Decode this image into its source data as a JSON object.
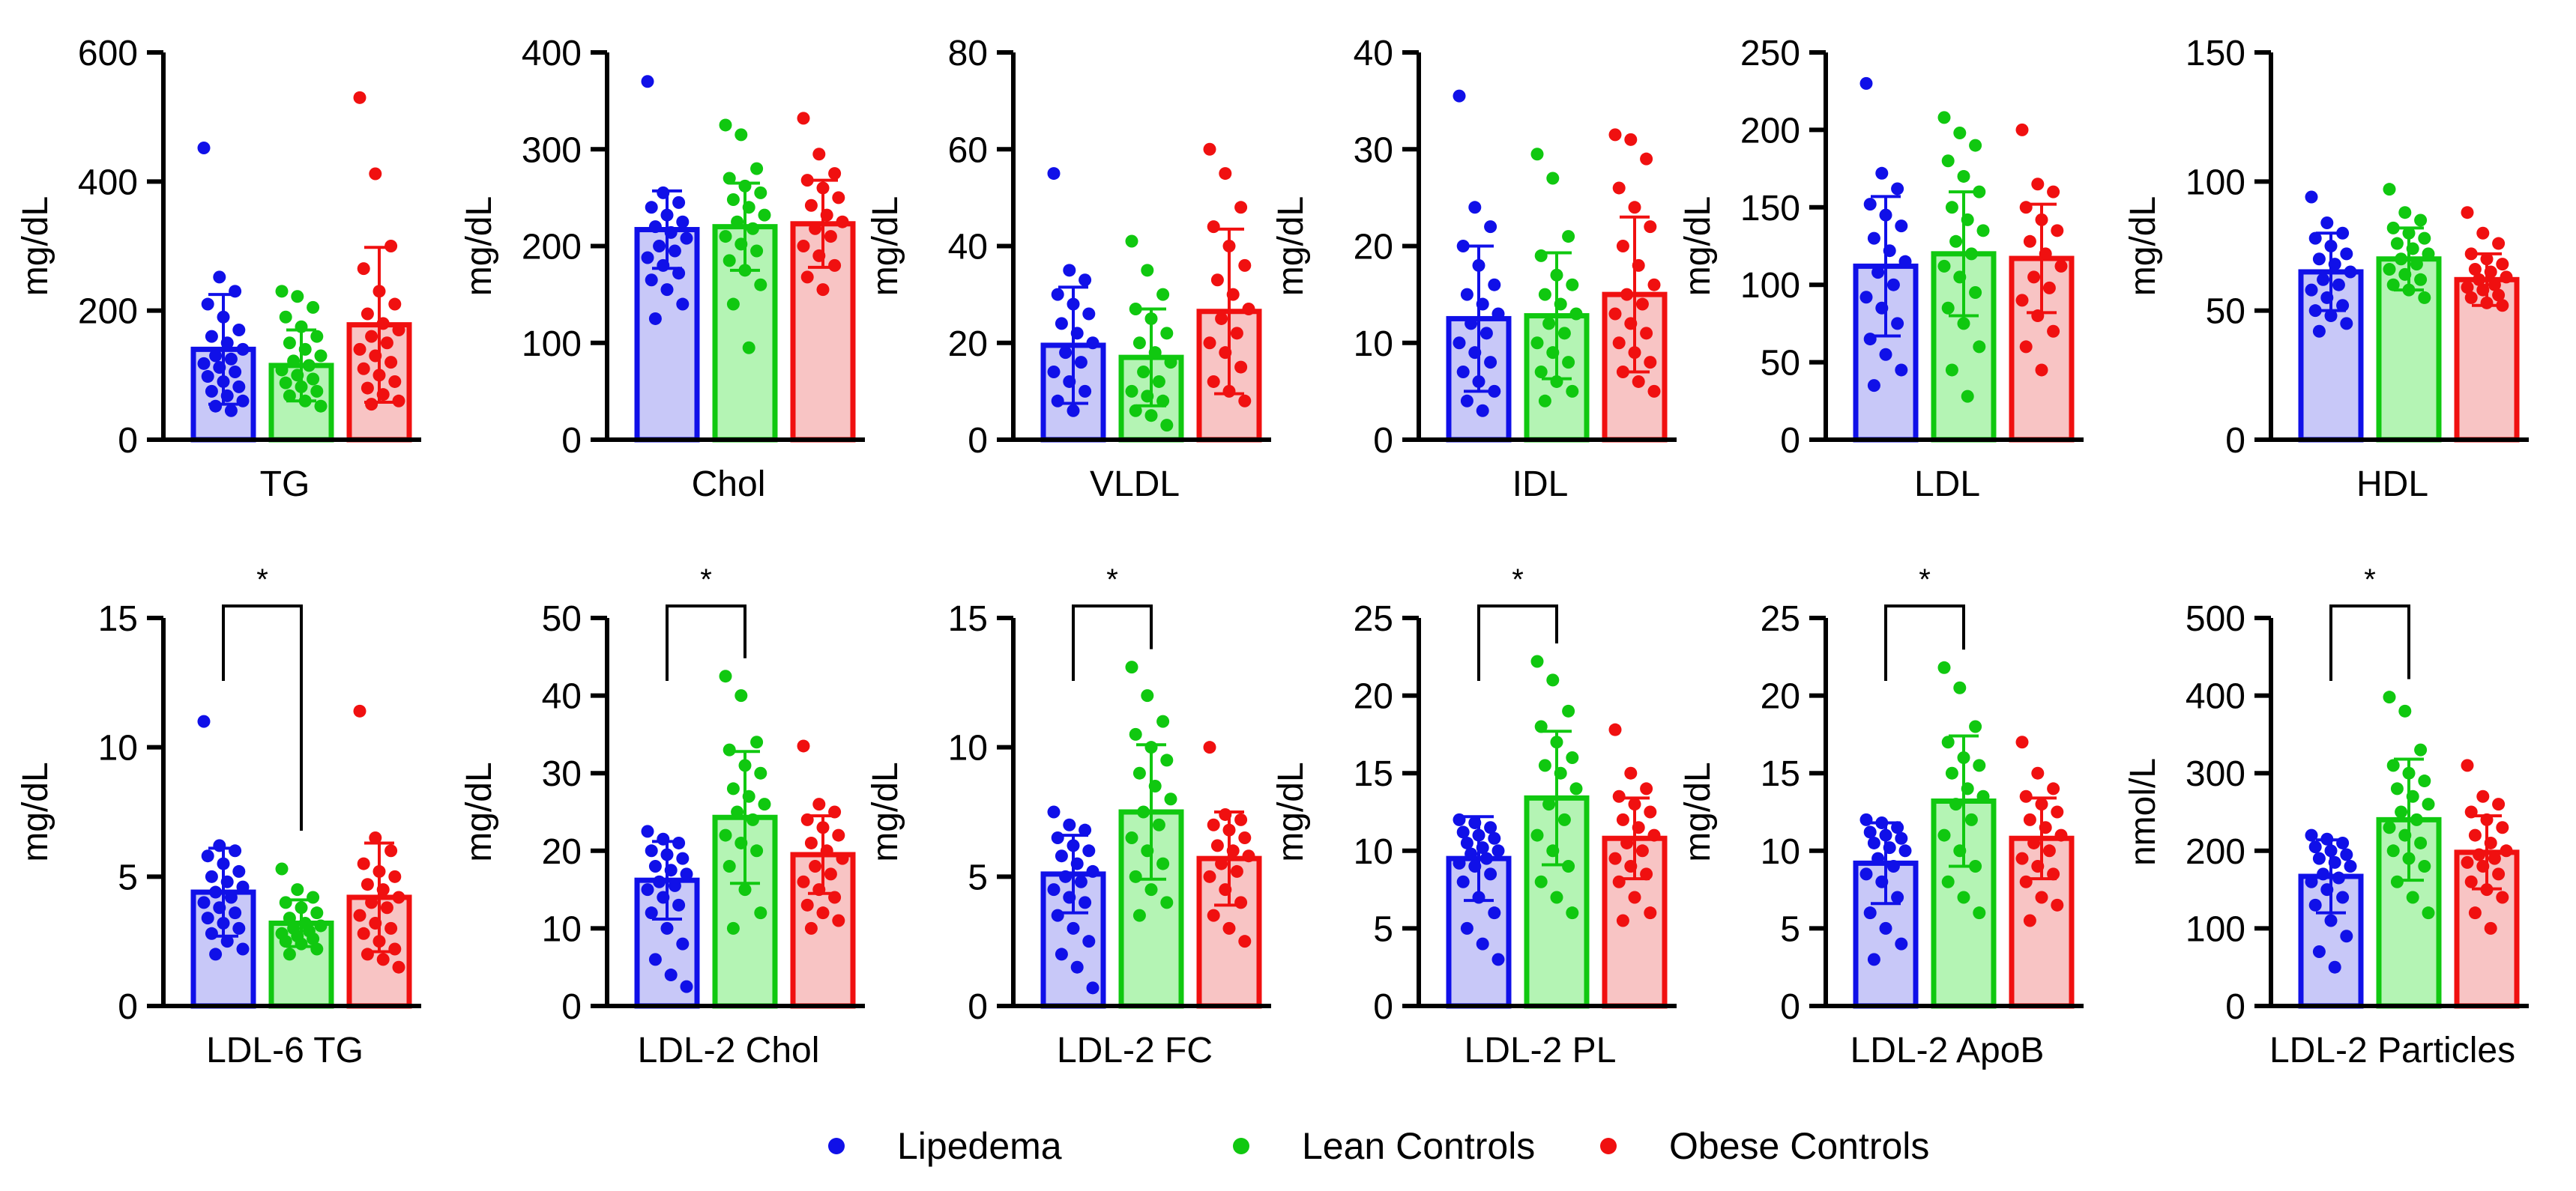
{
  "groups": [
    {
      "name": "Lipedema",
      "color": "#1010e8",
      "fill": "#c8c8f8"
    },
    {
      "name": "Lean Controls",
      "color": "#10c810",
      "fill": "#b4f4b4"
    },
    {
      "name": "Obese Controls",
      "color": "#f01010",
      "fill": "#f8c4c4"
    }
  ],
  "chart_data": [
    {
      "type": "bar",
      "title": "TG",
      "xlabel": "TG",
      "ylabel": "mg/dL",
      "ylim": [
        0,
        600
      ],
      "yticks": [
        0,
        200,
        400,
        600
      ],
      "values": [
        140,
        115,
        178
      ],
      "errors": [
        85,
        55,
        120
      ],
      "points": [
        [
          452,
          252,
          230,
          210,
          190,
          170,
          160,
          150,
          140,
          130,
          125,
          118,
          112,
          105,
          98,
          90,
          82,
          75,
          68,
          60,
          52,
          45
        ],
        [
          230,
          222,
          205,
          190,
          175,
          160,
          150,
          140,
          130,
          122,
          115,
          108,
          100,
          94,
          88,
          82,
          75,
          68,
          60,
          52
        ],
        [
          530,
          412,
          300,
          265,
          230,
          210,
          195,
          180,
          170,
          160,
          150,
          140,
          130,
          120,
          110,
          100,
          90,
          80,
          70,
          60,
          55
        ]
      ],
      "significance": null
    },
    {
      "type": "bar",
      "title": "Chol",
      "xlabel": "Chol",
      "ylabel": "mg/dL",
      "ylim": [
        0,
        400
      ],
      "yticks": [
        0,
        100,
        200,
        300,
        400
      ],
      "values": [
        217,
        220,
        223
      ],
      "errors": [
        40,
        45,
        45
      ],
      "points": [
        [
          370,
          255,
          245,
          240,
          232,
          225,
          220,
          214,
          208,
          200,
          195,
          188,
          180,
          172,
          165,
          155,
          140,
          125
        ],
        [
          325,
          315,
          280,
          270,
          262,
          255,
          248,
          240,
          232,
          225,
          218,
          210,
          202,
          195,
          185,
          175,
          160,
          140,
          95
        ],
        [
          332,
          295,
          275,
          268,
          260,
          250,
          242,
          232,
          225,
          218,
          210,
          200,
          190,
          180,
          168,
          155
        ]
      ],
      "significance": null
    },
    {
      "type": "bar",
      "title": "VLDL",
      "xlabel": "VLDL",
      "ylabel": "mg/dL",
      "ylim": [
        0,
        80
      ],
      "yticks": [
        0,
        20,
        40,
        60,
        80
      ],
      "values": [
        19.5,
        17,
        26.5
      ],
      "errors": [
        12,
        10,
        17
      ],
      "points": [
        [
          55,
          35,
          33,
          30,
          28,
          26,
          24,
          22,
          20,
          18,
          16,
          14,
          12,
          10,
          8,
          6
        ],
        [
          41,
          35,
          30,
          27,
          25,
          22,
          20,
          18,
          16,
          14,
          12,
          10,
          9,
          8,
          6,
          5,
          3
        ],
        [
          60,
          55,
          48,
          44,
          40,
          36,
          33,
          30,
          27,
          25,
          22,
          20,
          18,
          15,
          12,
          10,
          8
        ]
      ],
      "significance": null
    },
    {
      "type": "bar",
      "title": "IDL",
      "xlabel": "IDL",
      "ylabel": "mg/dL",
      "ylim": [
        0,
        40
      ],
      "yticks": [
        0,
        10,
        20,
        30,
        40
      ],
      "values": [
        12.5,
        12.8,
        15
      ],
      "errors": [
        7.5,
        6.5,
        8
      ],
      "points": [
        [
          35.5,
          24,
          22,
          20,
          18,
          16,
          15,
          14,
          13,
          12,
          11,
          10,
          9,
          8,
          7,
          6,
          5,
          4,
          3
        ],
        [
          29.5,
          27,
          21,
          19,
          17,
          16,
          15,
          14,
          13,
          12,
          11,
          10,
          9,
          8,
          7,
          6,
          5,
          4
        ],
        [
          31.5,
          31,
          29,
          26,
          24,
          22,
          20,
          18,
          16,
          15,
          14,
          13,
          12,
          11,
          10,
          9,
          8,
          7,
          6,
          5
        ]
      ],
      "significance": null
    },
    {
      "type": "bar",
      "title": "LDL",
      "xlabel": "LDL",
      "ylabel": "mg/dL",
      "ylim": [
        0,
        250
      ],
      "yticks": [
        0,
        50,
        100,
        150,
        200,
        250
      ],
      "values": [
        112,
        120,
        117
      ],
      "errors": [
        45,
        40,
        35
      ],
      "points": [
        [
          230,
          172,
          162,
          152,
          145,
          138,
          130,
          122,
          115,
          108,
          100,
          92,
          85,
          75,
          65,
          55,
          45,
          35
        ],
        [
          208,
          198,
          190,
          180,
          170,
          160,
          150,
          142,
          135,
          128,
          120,
          112,
          105,
          95,
          85,
          75,
          60,
          45,
          28
        ],
        [
          200,
          165,
          160,
          150,
          142,
          135,
          128,
          120,
          112,
          105,
          98,
          90,
          80,
          70,
          60,
          45
        ]
      ],
      "significance": null
    },
    {
      "type": "bar",
      "title": "HDL",
      "xlabel": "HDL",
      "ylabel": "mg/dL",
      "ylim": [
        0,
        150
      ],
      "yticks": [
        0,
        50,
        100,
        150
      ],
      "values": [
        65,
        70,
        62
      ],
      "errors": [
        15,
        12,
        10
      ],
      "points": [
        [
          94,
          84,
          80,
          78,
          75,
          72,
          70,
          68,
          65,
          62,
          60,
          58,
          55,
          52,
          50,
          48,
          45,
          42
        ],
        [
          97,
          88,
          85,
          82,
          80,
          78,
          76,
          74,
          72,
          70,
          68,
          66,
          64,
          62,
          60,
          58,
          55
        ],
        [
          88,
          80,
          76,
          72,
          70,
          68,
          66,
          65,
          63,
          62,
          60,
          59,
          58,
          56,
          55,
          53,
          52
        ]
      ],
      "significance": null
    },
    {
      "type": "bar",
      "title": "LDL-6 TG",
      "xlabel": "LDL-6 TG",
      "ylabel": "mg/dL",
      "ylim": [
        0,
        15
      ],
      "yticks": [
        0,
        5,
        10,
        15
      ],
      "values": [
        4.4,
        3.2,
        4.2
      ],
      "errors": [
        1.7,
        0.9,
        2.1
      ],
      "points": [
        [
          11,
          6.2,
          6,
          5.8,
          5.5,
          5.2,
          5,
          4.8,
          4.6,
          4.4,
          4.2,
          4,
          3.8,
          3.6,
          3.4,
          3.2,
          3,
          2.8,
          2.5,
          2.2,
          2
        ],
        [
          5.3,
          4.5,
          4.2,
          4,
          3.8,
          3.6,
          3.4,
          3.2,
          3.1,
          3,
          2.9,
          2.8,
          2.7,
          2.6,
          2.5,
          2.4,
          2.2,
          2
        ],
        [
          11.4,
          6.5,
          6,
          5.5,
          5.2,
          5,
          4.7,
          4.5,
          4.2,
          4,
          3.8,
          3.5,
          3.2,
          3,
          2.8,
          2.5,
          2.2,
          2,
          1.8,
          1.5
        ]
      ],
      "significance": {
        "label": "*",
        "from": 0,
        "to": 1
      }
    },
    {
      "type": "bar",
      "title": "LDL-2 Chol",
      "xlabel": "LDL-2 Chol",
      "ylabel": "mg/dL",
      "ylim": [
        0,
        50
      ],
      "yticks": [
        0,
        10,
        20,
        30,
        40,
        50
      ],
      "values": [
        16.2,
        24.3,
        19.5
      ],
      "errors": [
        5,
        8.5,
        5
      ],
      "points": [
        [
          22.5,
          21.5,
          21,
          20,
          19.5,
          19,
          18,
          17.5,
          17,
          16,
          15.5,
          15,
          14,
          13,
          12,
          10,
          8,
          6,
          4,
          2.5
        ],
        [
          42.5,
          40,
          34,
          33,
          31,
          30,
          28,
          27,
          26,
          25,
          24,
          22,
          21,
          20,
          18,
          15,
          12,
          10
        ],
        [
          33.5,
          26,
          25,
          24,
          23,
          22,
          21,
          20,
          19,
          18,
          17,
          16,
          15,
          14,
          13,
          12,
          11,
          10
        ]
      ],
      "significance": {
        "label": "*",
        "from": 0,
        "to": 1
      }
    },
    {
      "type": "bar",
      "title": "LDL-2 FC",
      "xlabel": "LDL-2 FC",
      "ylabel": "mg/dL",
      "ylim": [
        0,
        15
      ],
      "yticks": [
        0,
        5,
        10,
        15
      ],
      "values": [
        5.1,
        7.5,
        5.7
      ],
      "errors": [
        1.5,
        2.6,
        1.8
      ],
      "points": [
        [
          7.5,
          7,
          6.8,
          6.5,
          6.2,
          6,
          5.8,
          5.5,
          5.2,
          5,
          4.8,
          4.5,
          4.2,
          4,
          3.5,
          3,
          2.5,
          2,
          1.5,
          0.7
        ],
        [
          13.1,
          12,
          11,
          10.5,
          10,
          9.5,
          9,
          8.5,
          8,
          7.5,
          7,
          6.5,
          6,
          5.5,
          5,
          4.5,
          4,
          3.5
        ],
        [
          10,
          7.4,
          7.2,
          7,
          6.8,
          6.5,
          6.2,
          6,
          5.8,
          5.5,
          5.2,
          5,
          4.5,
          4,
          3.5,
          3,
          2.5
        ]
      ],
      "significance": {
        "label": "*",
        "from": 0,
        "to": 1
      }
    },
    {
      "type": "bar",
      "title": "LDL-2 PL",
      "xlabel": "LDL-2 PL",
      "ylabel": "mg/dL",
      "ylim": [
        0,
        25
      ],
      "yticks": [
        0,
        5,
        10,
        15,
        20,
        25
      ],
      "values": [
        9.5,
        13.4,
        10.8
      ],
      "errors": [
        2.7,
        4.3,
        2.6
      ],
      "points": [
        [
          12,
          11.8,
          11.5,
          11.2,
          11,
          10.8,
          10.5,
          10.2,
          10,
          9.8,
          9.5,
          9.2,
          9,
          8.5,
          8,
          7,
          6,
          5,
          4,
          3
        ],
        [
          22.2,
          21,
          19,
          18,
          17,
          16,
          15.5,
          15,
          14,
          13,
          12,
          11,
          10,
          9,
          8,
          7,
          6
        ],
        [
          17.8,
          15,
          14,
          13.5,
          13,
          12.5,
          12,
          11.5,
          11,
          10.5,
          10,
          9.5,
          9,
          8.5,
          8,
          7,
          6,
          5.5
        ]
      ],
      "significance": {
        "label": "*",
        "from": 0,
        "to": 1
      }
    },
    {
      "type": "bar",
      "title": "LDL-2 ApoB",
      "xlabel": "LDL-2 ApoB",
      "ylabel": "mg/dL",
      "ylim": [
        0,
        25
      ],
      "yticks": [
        0,
        5,
        10,
        15,
        20,
        25
      ],
      "values": [
        9.2,
        13.2,
        10.8
      ],
      "errors": [
        2.6,
        4.2,
        2.6
      ],
      "points": [
        [
          12,
          11.8,
          11.5,
          11.2,
          11,
          10.8,
          10.5,
          10.2,
          10,
          9.5,
          9,
          8.5,
          8,
          7,
          6,
          5,
          4,
          3
        ],
        [
          21.8,
          20.5,
          18,
          17,
          16,
          15.5,
          15,
          14,
          13.5,
          13,
          12,
          11,
          10,
          9,
          8,
          7,
          6
        ],
        [
          17,
          15,
          14,
          13.5,
          13,
          12.5,
          12,
          11.5,
          11,
          10.5,
          10,
          9.5,
          9,
          8.5,
          8,
          7,
          6.5,
          5.5
        ]
      ],
      "significance": {
        "label": "*",
        "from": 0,
        "to": 1
      }
    },
    {
      "type": "bar",
      "title": "LDL-2 Particles",
      "xlabel": "LDL-2 Particles",
      "ylabel": "nmol/L",
      "ylim": [
        0,
        500
      ],
      "yticks": [
        0,
        100,
        200,
        300,
        400,
        500
      ],
      "values": [
        167,
        240,
        198
      ],
      "errors": [
        47,
        78,
        47
      ],
      "points": [
        [
          220,
          215,
          210,
          205,
          200,
          195,
          190,
          185,
          180,
          170,
          165,
          160,
          150,
          140,
          130,
          110,
          90,
          70,
          50
        ],
        [
          398,
          380,
          330,
          310,
          300,
          290,
          280,
          270,
          260,
          250,
          240,
          230,
          220,
          210,
          200,
          190,
          180,
          160,
          140,
          120
        ],
        [
          310,
          270,
          260,
          250,
          240,
          230,
          220,
          210,
          200,
          195,
          190,
          185,
          180,
          170,
          160,
          150,
          140,
          120,
          100
        ]
      ],
      "significance": {
        "label": "*",
        "from": 0,
        "to": 1
      }
    }
  ]
}
